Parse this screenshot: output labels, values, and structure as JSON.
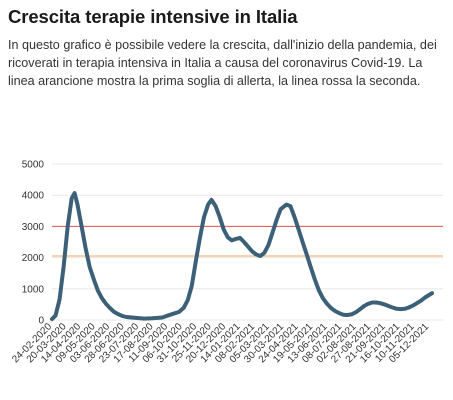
{
  "header": {
    "title": "Crescita terapie intensive in Italia",
    "description": "In questo grafico è possibile vedere la crescita, dall'inizio della pandemia, dei ricoverati in terapia intensiva in Italia a causa del coronavirus Covid-19. La linea arancione mostra la prima soglia di allerta, la linea rossa la seconda."
  },
  "chart_data": {
    "type": "line",
    "title": "Crescita terapie intensive in Italia",
    "xlabel": "",
    "ylabel": "",
    "ylim": [
      0,
      5000
    ],
    "yticks": [
      0,
      1000,
      2000,
      3000,
      4000,
      5000
    ],
    "xticks": [
      "24-02-2020",
      "20-03-2020",
      "14-04-2020",
      "09-05-2020",
      "03-06-2020",
      "28-06-2020",
      "23-07-2020",
      "17-08-2020",
      "11-09-2020",
      "06-10-2020",
      "31-10-2020",
      "25-11-2020",
      "20-12-2020",
      "14-01-2021",
      "08-02-2021",
      "05-03-2021",
      "30-03-2021",
      "24-04-2021",
      "19-05-2021",
      "13-06-2021",
      "08-07-2021",
      "02-08-2021",
      "27-08-2021",
      "21-09-2021",
      "16-10-2021",
      "10-11-2021",
      "05-12-2021"
    ],
    "grid": true,
    "thresholds": [
      {
        "name": "Prima soglia di allerta",
        "value": 2050,
        "color": "#f4a460"
      },
      {
        "name": "Seconda soglia di allerta",
        "value": 3000,
        "color": "#e05555"
      }
    ],
    "series": [
      {
        "name": "",
        "color": "#3d6079",
        "points": [
          [
            "2020-02-24",
            30
          ],
          [
            "2020-03-01",
            140
          ],
          [
            "2020-03-08",
            650
          ],
          [
            "2020-03-15",
            1700
          ],
          [
            "2020-03-22",
            3000
          ],
          [
            "2020-03-29",
            3900
          ],
          [
            "2020-04-03",
            4068
          ],
          [
            "2020-04-08",
            3700
          ],
          [
            "2020-04-15",
            3000
          ],
          [
            "2020-04-22",
            2300
          ],
          [
            "2020-04-29",
            1700
          ],
          [
            "2020-05-06",
            1300
          ],
          [
            "2020-05-13",
            950
          ],
          [
            "2020-05-20",
            700
          ],
          [
            "2020-05-27",
            520
          ],
          [
            "2020-06-03",
            380
          ],
          [
            "2020-06-10",
            260
          ],
          [
            "2020-06-17",
            190
          ],
          [
            "2020-06-24",
            130
          ],
          [
            "2020-07-01",
            95
          ],
          [
            "2020-07-15",
            70
          ],
          [
            "2020-08-01",
            45
          ],
          [
            "2020-08-15",
            55
          ],
          [
            "2020-09-01",
            80
          ],
          [
            "2020-09-15",
            170
          ],
          [
            "2020-09-30",
            260
          ],
          [
            "2020-10-08",
            390
          ],
          [
            "2020-10-15",
            640
          ],
          [
            "2020-10-22",
            1100
          ],
          [
            "2020-10-29",
            1900
          ],
          [
            "2020-11-05",
            2630
          ],
          [
            "2020-11-12",
            3300
          ],
          [
            "2020-11-19",
            3700
          ],
          [
            "2020-11-25",
            3850
          ],
          [
            "2020-12-02",
            3650
          ],
          [
            "2020-12-09",
            3300
          ],
          [
            "2020-12-16",
            2900
          ],
          [
            "2020-12-23",
            2650
          ],
          [
            "2020-12-30",
            2550
          ],
          [
            "2021-01-06",
            2600
          ],
          [
            "2021-01-13",
            2630
          ],
          [
            "2021-01-20",
            2500
          ],
          [
            "2021-01-27",
            2350
          ],
          [
            "2021-02-03",
            2200
          ],
          [
            "2021-02-10",
            2100
          ],
          [
            "2021-02-17",
            2050
          ],
          [
            "2021-02-24",
            2150
          ],
          [
            "2021-03-03",
            2400
          ],
          [
            "2021-03-10",
            2800
          ],
          [
            "2021-03-17",
            3200
          ],
          [
            "2021-03-24",
            3550
          ],
          [
            "2021-04-03",
            3700
          ],
          [
            "2021-04-10",
            3650
          ],
          [
            "2021-04-17",
            3300
          ],
          [
            "2021-04-24",
            2900
          ],
          [
            "2021-05-01",
            2500
          ],
          [
            "2021-05-08",
            2100
          ],
          [
            "2021-05-15",
            1700
          ],
          [
            "2021-05-22",
            1300
          ],
          [
            "2021-05-29",
            950
          ],
          [
            "2021-06-05",
            700
          ],
          [
            "2021-06-12",
            520
          ],
          [
            "2021-06-19",
            380
          ],
          [
            "2021-06-26",
            290
          ],
          [
            "2021-07-03",
            220
          ],
          [
            "2021-07-10",
            170
          ],
          [
            "2021-07-17",
            160
          ],
          [
            "2021-07-24",
            180
          ],
          [
            "2021-08-01",
            250
          ],
          [
            "2021-08-08",
            350
          ],
          [
            "2021-08-15",
            450
          ],
          [
            "2021-08-22",
            520
          ],
          [
            "2021-08-29",
            560
          ],
          [
            "2021-09-05",
            560
          ],
          [
            "2021-09-12",
            540
          ],
          [
            "2021-09-19",
            500
          ],
          [
            "2021-09-26",
            450
          ],
          [
            "2021-10-03",
            400
          ],
          [
            "2021-10-10",
            360
          ],
          [
            "2021-10-17",
            350
          ],
          [
            "2021-10-24",
            360
          ],
          [
            "2021-10-31",
            400
          ],
          [
            "2021-11-07",
            460
          ],
          [
            "2021-11-14",
            540
          ],
          [
            "2021-11-21",
            620
          ],
          [
            "2021-11-28",
            720
          ],
          [
            "2021-12-05",
            800
          ],
          [
            "2021-12-10",
            860
          ]
        ]
      }
    ]
  }
}
